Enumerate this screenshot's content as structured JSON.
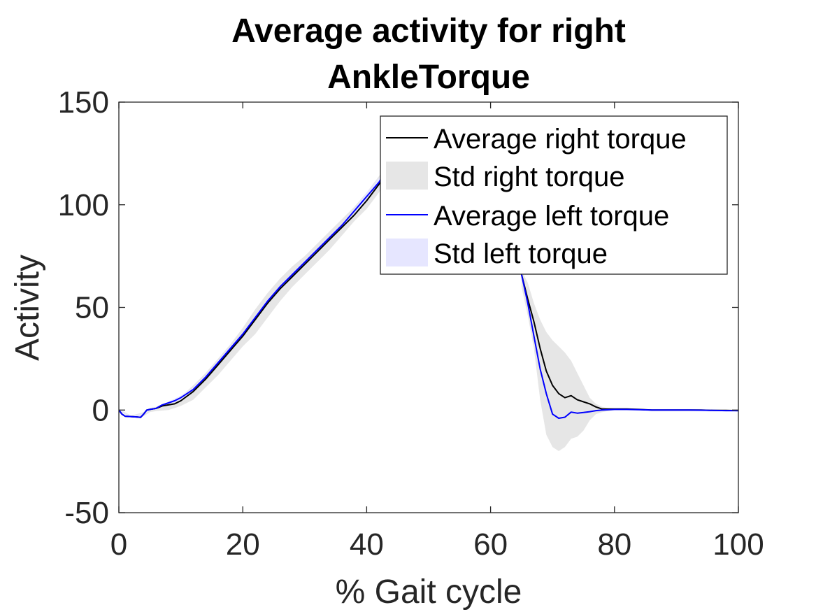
{
  "chart_data": {
    "type": "line",
    "title": [
      "Average activity for right",
      "AnkleTorque"
    ],
    "xlabel": "% Gait cycle",
    "ylabel": "Activity",
    "xlim": [
      0,
      100
    ],
    "ylim": [
      -50,
      150
    ],
    "x_ticks": [
      0,
      20,
      40,
      60,
      80,
      100
    ],
    "y_ticks": [
      -50,
      0,
      50,
      100,
      150
    ],
    "grid": false,
    "legend_position": "top-right",
    "legend": [
      "Average right torque",
      "Std right torque",
      "Average left torque",
      "Std left torque"
    ],
    "colors": {
      "avg_right": "#000000",
      "std_right": "#e6e6e6",
      "avg_left": "#0000ff",
      "std_left": "#e6e6ff"
    },
    "series": [
      {
        "name": "Average right torque",
        "x": [
          0,
          0.5,
          1,
          2,
          3,
          3.5,
          4,
          4.5,
          5,
          6,
          7,
          8,
          9,
          10,
          12,
          14,
          16,
          18,
          20,
          22,
          24,
          26,
          28,
          30,
          32,
          34,
          36,
          38,
          40,
          42,
          43
        ],
        "y": [
          0,
          -2,
          -3,
          -3.2,
          -3.4,
          -3.6,
          -2,
          0,
          0.3,
          0.8,
          2,
          2.5,
          3,
          4.5,
          9,
          15,
          22,
          29,
          36,
          44,
          52,
          59,
          65,
          71,
          77,
          83,
          89,
          95,
          102,
          110,
          115
        ]
      },
      {
        "name": "Average right torque",
        "x": [
          65,
          66,
          67,
          68,
          69,
          70,
          71,
          72,
          73,
          74,
          75,
          76,
          77,
          78,
          80,
          82,
          84,
          86,
          88,
          90,
          92,
          94,
          96,
          98,
          100
        ],
        "y": [
          66,
          54,
          43,
          30,
          19,
          12,
          8,
          6,
          7,
          5,
          4,
          3,
          1.5,
          0.5,
          0.5,
          0.5,
          0.3,
          0,
          0,
          0,
          0,
          0,
          -0.2,
          -0.2,
          -0.3
        ]
      },
      {
        "name": "Average left torque",
        "x": [
          0,
          0.5,
          1,
          2,
          3,
          3.5,
          4,
          4.5,
          5,
          6,
          7,
          8,
          9,
          10,
          12,
          14,
          16,
          18,
          20,
          22,
          24,
          26,
          28,
          30,
          32,
          34,
          36,
          38,
          40,
          42,
          43
        ],
        "y": [
          0,
          -2,
          -3,
          -3.2,
          -3.4,
          -3.6,
          -2,
          0,
          0.3,
          0.8,
          2.5,
          3.5,
          4.5,
          6,
          10,
          16,
          23,
          30,
          37,
          45,
          53,
          60,
          66,
          72,
          78,
          84,
          90,
          97,
          104,
          111,
          116
        ]
      },
      {
        "name": "Average left torque",
        "x": [
          65,
          66,
          67,
          68,
          69,
          70,
          71,
          72,
          73,
          74,
          75,
          76,
          77,
          78,
          80,
          82,
          84,
          86,
          88,
          90,
          92,
          94,
          96,
          98,
          100
        ],
        "y": [
          66,
          52,
          36,
          20,
          8,
          -2,
          -4,
          -3.5,
          -1,
          -1.5,
          -1.2,
          -0.8,
          -0.3,
          0,
          0.3,
          0.3,
          0.2,
          0,
          0,
          0,
          0,
          -0.1,
          -0.2,
          -0.3,
          -0.3
        ]
      },
      {
        "name": "Std right torque",
        "x": [
          0,
          2,
          4,
          5,
          6,
          8,
          10,
          12,
          14,
          16,
          18,
          20,
          22,
          24,
          26,
          28,
          30,
          32,
          34,
          36,
          38,
          40,
          42,
          43
        ],
        "upper": [
          0.5,
          -2.7,
          -1,
          1,
          1.5,
          4,
          6.5,
          12,
          18,
          25,
          32,
          40,
          49,
          57,
          64,
          70,
          75,
          81,
          87,
          93,
          99,
          106,
          114,
          118
        ],
        "lower": [
          -0.5,
          -3.7,
          -3,
          -1,
          -0.5,
          0,
          2,
          5,
          11,
          17,
          24,
          31,
          37,
          45,
          53,
          60,
          66,
          72,
          78,
          85,
          92,
          98,
          106,
          112
        ]
      },
      {
        "name": "Std right torque",
        "x": [
          65,
          66,
          67,
          68,
          69,
          70,
          71,
          72,
          73,
          74,
          75,
          76,
          77,
          78,
          79,
          80
        ],
        "upper": [
          68,
          62,
          52,
          44,
          38,
          34,
          31,
          28,
          24,
          18,
          12,
          6,
          3,
          1.5,
          0.8,
          0.5
        ],
        "lower": [
          60,
          46,
          30,
          5,
          -12,
          -18,
          -20,
          -18,
          -14,
          -13,
          -10,
          -5,
          -2,
          -1,
          -0.5,
          0
        ]
      },
      {
        "name": "Std left torque",
        "x": [
          0,
          2,
          4,
          5,
          6,
          8,
          10,
          12,
          14,
          16,
          18,
          20,
          22,
          24,
          26,
          28,
          30,
          32,
          34,
          36,
          38,
          40,
          42,
          43
        ],
        "upper": [
          0.3,
          -2.9,
          -1.5,
          0.6,
          1.1,
          4,
          7,
          11,
          17,
          24,
          31,
          38,
          46,
          54,
          61,
          67,
          73,
          79,
          85,
          91,
          98,
          106,
          113,
          118
        ],
        "lower": [
          -0.3,
          -3.5,
          -2.5,
          0,
          0.5,
          3,
          5,
          9,
          15,
          22,
          29,
          36,
          44,
          52,
          59,
          65,
          71,
          77,
          83,
          89,
          96,
          102,
          109,
          114
        ]
      }
    ]
  }
}
